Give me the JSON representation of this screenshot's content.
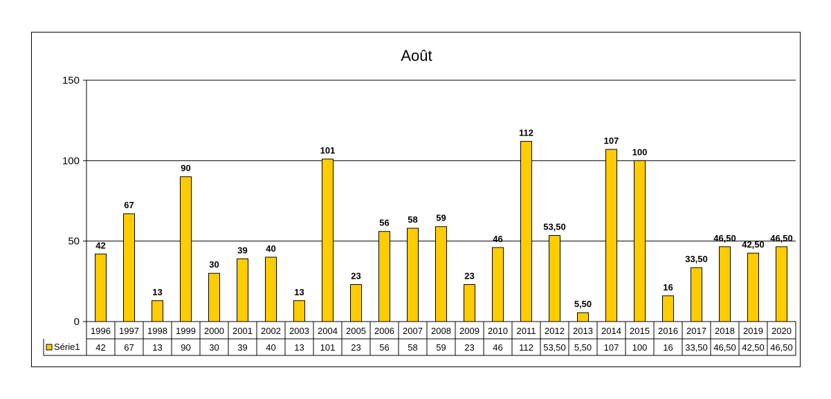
{
  "chart_data": {
    "type": "bar",
    "title": "Août",
    "xlabel": "",
    "ylabel": "",
    "ylim": [
      0,
      150
    ],
    "yticks": [
      0,
      50,
      100,
      150
    ],
    "grid": true,
    "categories": [
      "1996",
      "1997",
      "1998",
      "1999",
      "2000",
      "2001",
      "2002",
      "2003",
      "2004",
      "2005",
      "2006",
      "2007",
      "2008",
      "2009",
      "2010",
      "2011",
      "2012",
      "2013",
      "2014",
      "2015",
      "2016",
      "2017",
      "2018",
      "2019",
      "2020"
    ],
    "series": [
      {
        "name": "Série1",
        "color": "#FFCC00",
        "values": [
          42,
          67,
          13,
          90,
          30,
          39,
          40,
          13,
          101,
          23,
          56,
          58,
          59,
          23,
          46,
          112,
          53.5,
          5.5,
          107,
          100,
          16,
          33.5,
          46.5,
          42.5,
          46.5
        ],
        "labels": [
          "42",
          "67",
          "13",
          "90",
          "30",
          "39",
          "40",
          "13",
          "101",
          "23",
          "56",
          "58",
          "59",
          "23",
          "46",
          "112",
          "53,50",
          "5,50",
          "107",
          "100",
          "16",
          "33,50",
          "46,50",
          "42,50",
          "46,50"
        ]
      }
    ],
    "data_table": true
  }
}
